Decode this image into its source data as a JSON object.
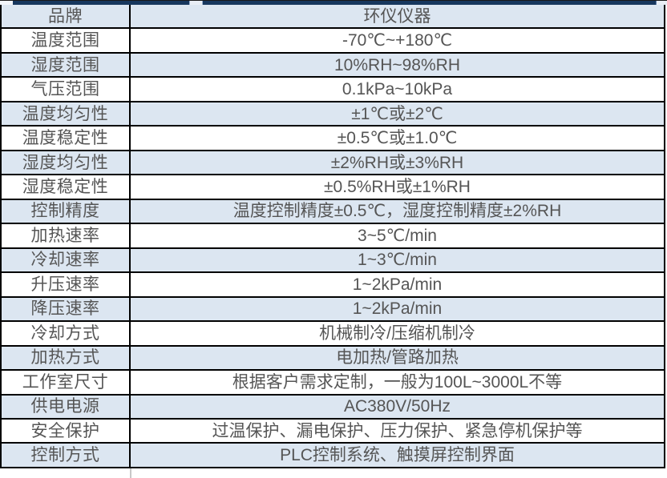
{
  "colors": {
    "row_alt_background": "#dce6f1",
    "row_plain_background": "#ffffff",
    "top_strip_navy": "#17375e",
    "table_border": "#000000",
    "text": "#555555"
  },
  "table": {
    "rows": [
      {
        "label": "品牌",
        "value": "环仪仪器"
      },
      {
        "label": "温度范围",
        "value": "-70℃~+180℃"
      },
      {
        "label": "湿度范围",
        "value": "10%RH~98%RH"
      },
      {
        "label": "气压范围",
        "value": "0.1kPa~10kPa"
      },
      {
        "label": "温度均匀性",
        "value": "±1℃或±2℃"
      },
      {
        "label": "温度稳定性",
        "value": "±0.5℃或±1.0℃"
      },
      {
        "label": "湿度均匀性",
        "value": "±2%RH或±3%RH"
      },
      {
        "label": "湿度稳定性",
        "value": "±0.5%RH或±1%RH"
      },
      {
        "label": "控制精度",
        "value": "温度控制精度±0.5℃，湿度控制精度±2%RH"
      },
      {
        "label": "加热速率",
        "value": "3~5℃/min"
      },
      {
        "label": "冷却速率",
        "value": "1~3℃/min"
      },
      {
        "label": "升压速率",
        "value": "1~2kPa/min"
      },
      {
        "label": "降压速率",
        "value": "1~2kPa/min"
      },
      {
        "label": "冷却方式",
        "value": "机械制冷/压缩机制冷"
      },
      {
        "label": "加热方式",
        "value": "电加热/管路加热"
      },
      {
        "label": "工作室尺寸",
        "value": "根据客户需求定制，一般为100L~3000L不等"
      },
      {
        "label": "供电电源",
        "value": "AC380V/50Hz"
      },
      {
        "label": "安全保护",
        "value": "过温保护、漏电保护、压力保护、紧急停机保护等"
      },
      {
        "label": "控制方式",
        "value": "PLC控制系统、触摸屏控制界面"
      }
    ]
  }
}
